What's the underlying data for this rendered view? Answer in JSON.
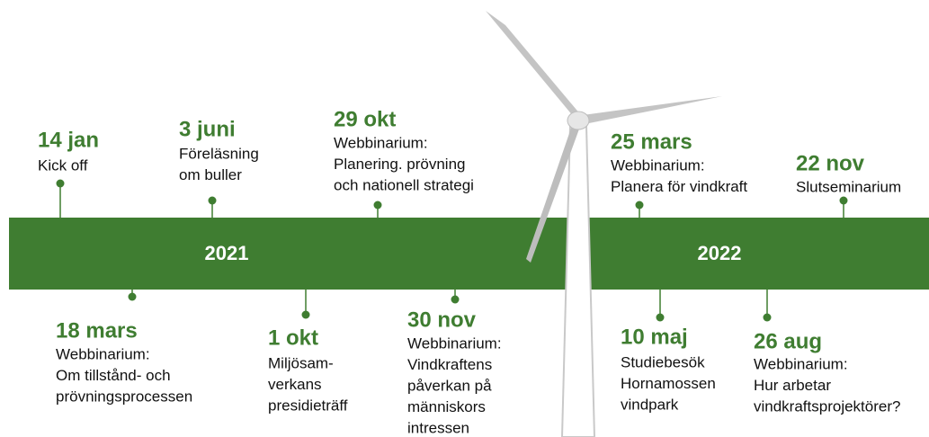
{
  "years": [
    "2021",
    "2022"
  ],
  "events": [
    {
      "date": "14 jan",
      "lines": [
        "Kick off"
      ]
    },
    {
      "date": "3 juni",
      "lines": [
        "Föreläsning",
        "om buller"
      ]
    },
    {
      "date": "29 okt",
      "lines": [
        "Webbinarium:",
        "Planering. prövning",
        "och nationell strategi"
      ]
    },
    {
      "date": "25 mars",
      "lines": [
        "Webbinarium:",
        "Planera för vindkraft"
      ]
    },
    {
      "date": "22 nov",
      "lines": [
        "Slutseminarium"
      ]
    },
    {
      "date": "18 mars",
      "lines": [
        "Webbinarium:",
        "Om tillstånd- och",
        "prövningsprocessen"
      ]
    },
    {
      "date": "1 okt",
      "lines": [
        "Miljösam-",
        "verkans",
        "presidieträff"
      ]
    },
    {
      "date": "30 nov",
      "lines": [
        "Webbinarium:",
        "Vindkraftens",
        "påverkan på",
        "människors",
        "intressen"
      ]
    },
    {
      "date": "10 maj",
      "lines": [
        "Studiebesök",
        "Hornamossen",
        "vindpark"
      ]
    },
    {
      "date": "26 aug",
      "lines": [
        "Webbinarium:",
        "Hur arbetar",
        "vindkraftsprojektörer?"
      ]
    }
  ]
}
